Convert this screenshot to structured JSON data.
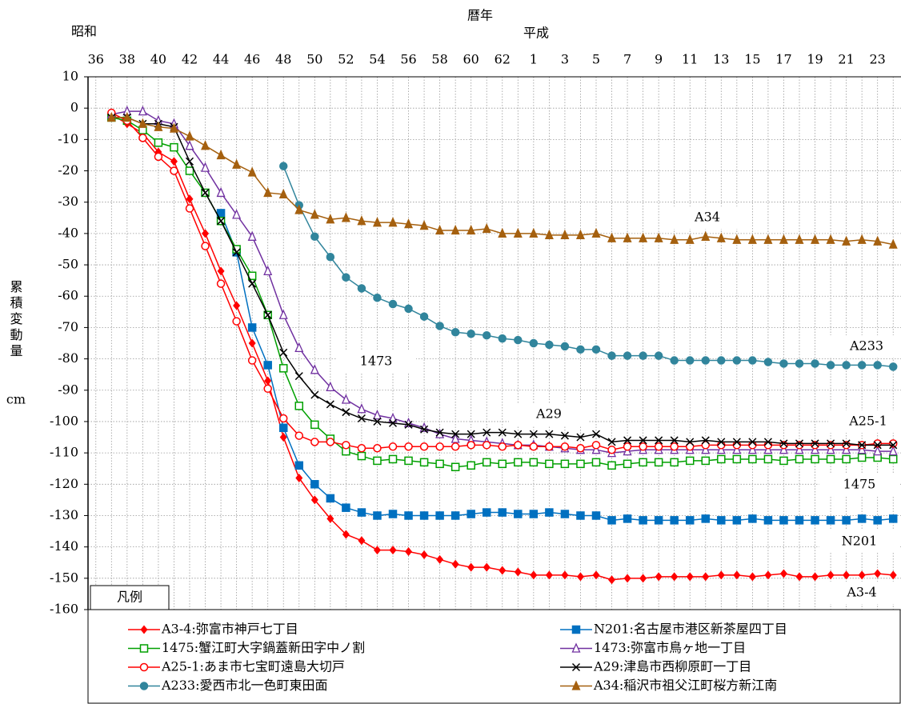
{
  "chart_data": {
    "type": "line",
    "xlabel": "暦年",
    "eras": [
      "昭和",
      "平成"
    ],
    "ylabel": "累積変動量",
    "yunit": "cm",
    "legend_title": "凡例",
    "categories": [
      "36",
      null,
      "38",
      null,
      "40",
      null,
      "42",
      null,
      "44",
      null,
      "46",
      null,
      "48",
      null,
      "50",
      null,
      "52",
      null,
      "54",
      null,
      "56",
      null,
      "58",
      null,
      "60",
      null,
      "62",
      null,
      "1",
      null,
      "3",
      null,
      "5",
      null,
      "7",
      null,
      "9",
      null,
      "11",
      null,
      "13",
      null,
      "15",
      null,
      "17",
      null,
      "19",
      null,
      "21",
      null,
      "23",
      null
    ],
    "ylim": [
      -160,
      10
    ],
    "yticks": [
      10,
      0,
      -10,
      -20,
      -30,
      -40,
      -50,
      -60,
      -70,
      -80,
      -90,
      -100,
      -110,
      -120,
      -130,
      -140,
      -150,
      -160
    ],
    "grid": true,
    "annotations": [
      "A34",
      "A233",
      "1473",
      "A29",
      "A25-1",
      "1475",
      "N201",
      "A3-4"
    ],
    "series": [
      {
        "name": "A3-4:弥富市神戸七丁目",
        "color": "#ff0000",
        "marker": "diamond",
        "values": [
          null,
          -2,
          -5,
          -8,
          -14,
          -17,
          -29,
          -40,
          -52,
          -63,
          -75,
          -87,
          -105,
          -118,
          -125,
          -131,
          -136,
          -138,
          -141,
          -141,
          -141.5,
          -142.5,
          -144,
          -145.5,
          -146.5,
          -146.5,
          -147.5,
          -148,
          -149,
          -149,
          -149,
          -149.5,
          -149,
          -150.5,
          -150,
          -150,
          -149.5,
          -149.5,
          -149.5,
          -149.5,
          -149,
          -149,
          -149.5,
          -149,
          -148.5,
          -149.5,
          -149.5,
          -149,
          -149,
          -149,
          -148.5,
          -149
        ]
      },
      {
        "name": "N201:名古屋市港区新茶屋四丁目",
        "color": "#0070c0",
        "marker": "square",
        "values": [
          null,
          null,
          null,
          null,
          null,
          null,
          null,
          null,
          -33.5,
          -46,
          -70,
          -82,
          -102,
          -114,
          -120,
          -124.5,
          -127.5,
          -129,
          -130,
          -129.5,
          -130,
          -130,
          -130,
          -130,
          -129.5,
          -129,
          -129,
          -129.5,
          -129.5,
          -129,
          -129.5,
          -130,
          -130,
          -131.5,
          -131,
          -131.5,
          -131.5,
          -131.5,
          -131.5,
          -131,
          -131.5,
          -131.5,
          -131,
          -131.5,
          -131.5,
          -131.5,
          -131.5,
          -131.5,
          -131.5,
          -131,
          -131.5,
          -131
        ]
      },
      {
        "name": "1475:蟹江町大字鍋蓋新田字中ノ割",
        "color": "#00a000",
        "marker": "square-open",
        "values": [
          null,
          -3,
          -4,
          -7,
          -11,
          -12.5,
          -20,
          -27,
          -36,
          -45,
          -53.5,
          -66,
          -83,
          -95,
          -101,
          -105.5,
          -109.5,
          -111,
          -112.5,
          -112,
          -112.5,
          -113,
          -113.5,
          -114.5,
          -114,
          -113,
          -113.5,
          -113,
          -113,
          -113.5,
          -113.5,
          -113.5,
          -113,
          -114,
          -113.5,
          -113,
          -113,
          -113,
          -112.5,
          -112.5,
          -112,
          -112,
          -112,
          -112,
          -112.5,
          -112,
          -112,
          -112,
          -112,
          -111.5,
          -111.5,
          -112
        ]
      },
      {
        "name": "1473:弥富市鳥ヶ地一丁目",
        "color": "#7030a0",
        "marker": "triangle-open",
        "values": [
          null,
          -2,
          -1,
          -1,
          -4,
          -5,
          -12,
          -19,
          -27,
          -34,
          -41,
          -52,
          -66,
          -76.5,
          -83.5,
          -89,
          -93,
          -96,
          -98,
          -99,
          -100.5,
          -102,
          -104,
          -105.5,
          -106,
          -106.5,
          -107,
          -107.5,
          -107.5,
          -108,
          -108.5,
          -109,
          -109,
          -110,
          -109.5,
          -109,
          -109,
          -109,
          -109,
          -109,
          -109,
          -109,
          -109,
          -109,
          -109,
          -109,
          -109,
          -109,
          -109,
          -109,
          -109.5,
          -109.5
        ]
      },
      {
        "name": "A25-1:あま市七宝町遠島大切戸",
        "color": "#ff0000",
        "marker": "circle-open",
        "values": [
          null,
          -1.5,
          -4,
          -9.5,
          -15.5,
          -20,
          -32,
          -44,
          -56,
          -68,
          -80.5,
          -89.5,
          -99,
          -104.5,
          -106.5,
          -106.5,
          -107.5,
          -108.5,
          -108.5,
          -108,
          -108,
          -108,
          -108,
          -108,
          -107.5,
          -107.5,
          -108,
          -107.5,
          -108,
          -108,
          -108,
          -108.5,
          -107.5,
          -109,
          -108,
          -108,
          -108,
          -108,
          -108,
          -107.5,
          -107.5,
          -107.5,
          -107.5,
          -107.5,
          -107.5,
          -107.5,
          -107.5,
          -107.5,
          -107.5,
          -107.5,
          -107,
          -107
        ]
      },
      {
        "name": "A29:津島市西柳原町一丁目",
        "color": "#000000",
        "marker": "x",
        "values": [
          null,
          -3,
          -3,
          -5,
          -5,
          -6,
          -17,
          -27,
          -36,
          -46,
          -56,
          -66,
          -78,
          -85.5,
          -91.5,
          -94.5,
          -97,
          -99,
          -100,
          -100.5,
          -101,
          -102.5,
          -103.5,
          -104,
          -104,
          -103.5,
          -103.5,
          -104,
          -104,
          -104,
          -104.5,
          -105,
          -104,
          -106.5,
          -106,
          -106,
          -106,
          -106,
          -106.5,
          -106,
          -106.5,
          -106.5,
          -106.5,
          -106.5,
          -107,
          -107,
          -107,
          -107,
          -107,
          -107.5,
          -107.5,
          -107.5
        ]
      },
      {
        "name": "A233:愛西市北一色町東田面",
        "color": "#31859c",
        "marker": "circle",
        "values": [
          null,
          null,
          null,
          null,
          null,
          null,
          null,
          null,
          null,
          null,
          null,
          null,
          -18.5,
          -31,
          -41,
          -47.5,
          -54,
          -57.5,
          -60.5,
          -62.5,
          -64,
          -66.5,
          -69.5,
          -71.5,
          -72,
          -72.5,
          -73.5,
          -74,
          -75,
          -75.5,
          -76,
          -77,
          -77,
          -79,
          -79,
          -79,
          -79,
          -80.5,
          -80.5,
          -80.5,
          -80.5,
          -80.5,
          -80.5,
          -81,
          -81.5,
          -81.5,
          -81.5,
          -82,
          -82,
          -82,
          -82,
          -82.5
        ]
      },
      {
        "name": "A34:稲沢市祖父江町桜方新江南",
        "color": "#a5600f",
        "marker": "triangle",
        "values": [
          null,
          -3,
          -3,
          -5,
          -6,
          -6.5,
          -9,
          -12,
          -15,
          -18,
          -20.5,
          -27,
          -27.5,
          -32.5,
          -34,
          -35.5,
          -35,
          -36,
          -36.5,
          -36.5,
          -37,
          -37.5,
          -39,
          -39,
          -39,
          -38.5,
          -40,
          -40,
          -40,
          -40.5,
          -40.5,
          -40.5,
          -40,
          -41.5,
          -41.5,
          -41.5,
          -41.5,
          -42,
          -42,
          -41,
          -41.5,
          -42,
          -42,
          -42,
          -42,
          -42,
          -42,
          -42,
          -42.5,
          -42,
          -42.5,
          -43.5
        ]
      }
    ]
  }
}
